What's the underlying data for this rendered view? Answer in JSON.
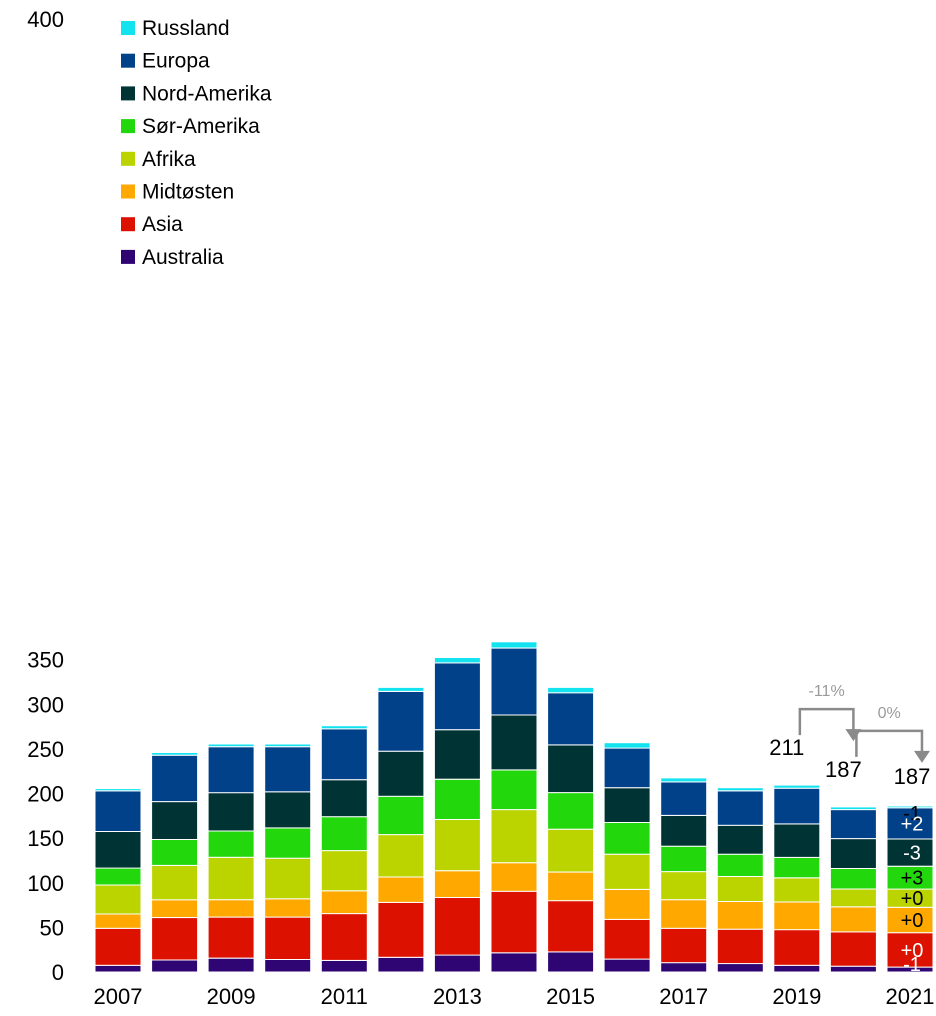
{
  "chart_data": {
    "type": "bar",
    "stacked": true,
    "categories": [
      "2007",
      "2008",
      "2009",
      "2010",
      "2011",
      "2012",
      "2013",
      "2014",
      "2015",
      "2016",
      "2017",
      "2018",
      "2019",
      "2020",
      "2021"
    ],
    "x_tick_labels": [
      "2007",
      "2009",
      "2011",
      "2013",
      "2015",
      "2017",
      "2019",
      "2021"
    ],
    "ylim": [
      0,
      400
    ],
    "y_ticks": [
      "0",
      "50",
      "100",
      "150",
      "200",
      "250",
      "300",
      "350",
      "400"
    ],
    "grid": false,
    "legend_position": "top-left",
    "series": [
      {
        "name": "Australia",
        "color": "#2e0573",
        "values": [
          7.5,
          13.5,
          15.5,
          14,
          13,
          16.5,
          19,
          21.5,
          22.5,
          14.5,
          10.5,
          9.5,
          7.5,
          6.5,
          5.5
        ]
      },
      {
        "name": "Asia",
        "color": "#dd1100",
        "values": [
          41.5,
          47.5,
          46,
          47.5,
          52.5,
          61.5,
          64.5,
          69,
          57.5,
          44.5,
          38.5,
          38.5,
          40,
          38.5,
          38.5
        ]
      },
      {
        "name": "Midtøsten",
        "color": "#ffa800",
        "values": [
          16,
          20,
          19.5,
          20.5,
          25.5,
          28.5,
          30,
          32,
          32,
          33.5,
          32,
          31,
          31,
          28,
          28.5
        ]
      },
      {
        "name": "Afrika",
        "color": "#bbd400",
        "values": [
          32.5,
          38.5,
          47.5,
          45.5,
          45,
          47.5,
          57.5,
          59.5,
          48,
          39.5,
          31.5,
          28,
          27,
          20,
          20.5
        ]
      },
      {
        "name": "Sør-Amerika",
        "color": "#22d80c",
        "values": [
          19,
          29,
          29.5,
          34,
          38,
          43,
          45,
          44.5,
          41,
          35.5,
          28.5,
          25,
          23,
          23,
          25.5
        ]
      },
      {
        "name": "Nord-Amerika",
        "color": "#003434",
        "values": [
          41,
          42.5,
          43,
          40.5,
          41.5,
          50.5,
          55.5,
          61.5,
          53.5,
          39,
          34.5,
          32.5,
          37.5,
          33.5,
          30.5
        ]
      },
      {
        "name": "Europa",
        "color": "#00418a",
        "values": [
          45.5,
          52,
          51.5,
          50.5,
          57,
          67,
          75,
          75,
          58.5,
          44.5,
          37.5,
          38.5,
          40,
          32.5,
          35
        ]
      },
      {
        "name": "Russland",
        "color": "#13e3ef",
        "values": [
          2.5,
          3,
          3,
          3,
          3.5,
          4.5,
          6,
          7,
          6,
          6,
          4.5,
          3.5,
          3.5,
          3,
          2
        ]
      }
    ],
    "totals": [
      {
        "category": "2019",
        "label": "211"
      },
      {
        "category": "2020",
        "label": "187"
      },
      {
        "category": "2021",
        "label": "187"
      }
    ],
    "changes": [
      {
        "from": "2019",
        "to": "2020",
        "label": "-11%"
      },
      {
        "from": "2020",
        "to": "2021",
        "label": "0%"
      }
    ],
    "delta_labels_2021": [
      {
        "series": "Russland",
        "label": "-1"
      },
      {
        "series": "Europa",
        "label": "+2"
      },
      {
        "series": "Nord-Amerika",
        "label": "-3"
      },
      {
        "series": "Sør-Amerika",
        "label": "+3"
      },
      {
        "series": "Afrika",
        "label": "+0"
      },
      {
        "series": "Midtøsten",
        "label": "+0"
      },
      {
        "series": "Asia",
        "label": "+0"
      },
      {
        "series": "Australia",
        "label": "-1"
      }
    ]
  }
}
